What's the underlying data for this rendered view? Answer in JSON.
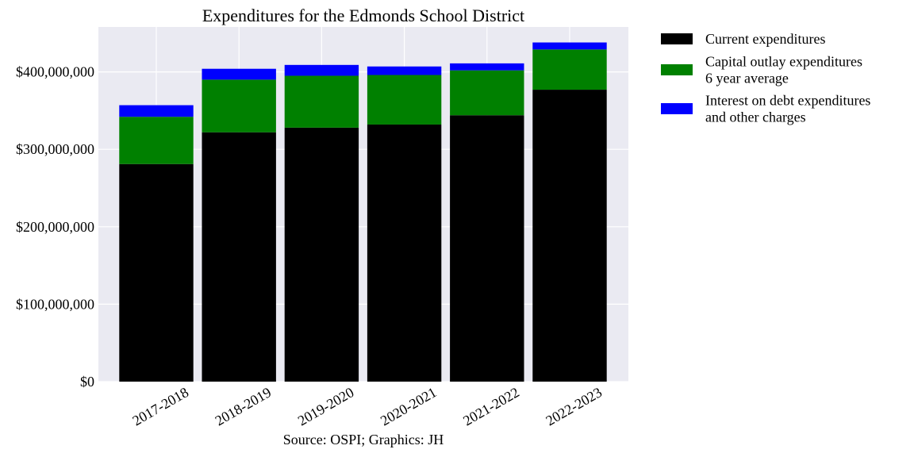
{
  "chart_data": {
    "type": "bar",
    "stacked": true,
    "title": "Expenditures for the Edmonds School District",
    "source": "Source: OSPI; Graphics: JH",
    "xlabel": "",
    "ylabel": "",
    "categories": [
      "2017-2018",
      "2018-2019",
      "2019-2020",
      "2020-2021",
      "2021-2022",
      "2022-2023"
    ],
    "ylim": [
      0,
      458000000
    ],
    "yticks": [
      0,
      100000000,
      200000000,
      300000000,
      400000000
    ],
    "ytick_labels": [
      "$0",
      "$100,000,000",
      "$200,000,000",
      "$300,000,000",
      "$400,000,000"
    ],
    "grid": true,
    "legend_position": "outside-right",
    "series": [
      {
        "name": "Current expenditures",
        "color": "#000000",
        "values": [
          281000000,
          322000000,
          328000000,
          332000000,
          344000000,
          377000000
        ]
      },
      {
        "name": "Capital outlay expenditures\n6 year average",
        "color": "#008000",
        "values": [
          61000000,
          68000000,
          67000000,
          64000000,
          58000000,
          52000000
        ]
      },
      {
        "name": "Interest on debt expenditures\nand other charges",
        "color": "#0000ff",
        "values": [
          15000000,
          14000000,
          14000000,
          11000000,
          9000000,
          9000000
        ]
      }
    ]
  }
}
